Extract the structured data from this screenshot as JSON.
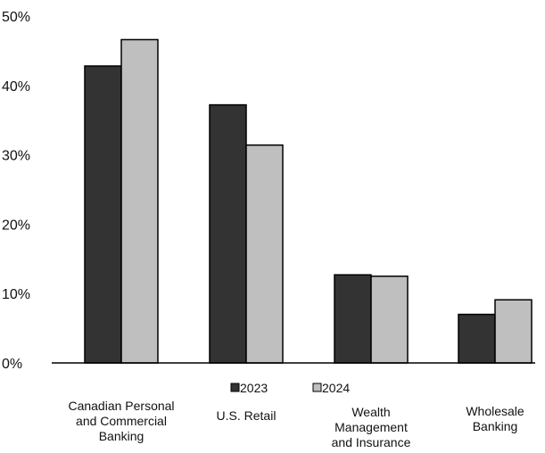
{
  "chart_data": {
    "type": "bar",
    "categories": [
      [
        "Canadian Personal",
        "and Commercial",
        "Banking"
      ],
      [
        "U.S. Retail"
      ],
      [
        "Wealth",
        "Management",
        "and Insurance"
      ],
      [
        "Wholesale",
        "Banking"
      ]
    ],
    "series": [
      {
        "name": "2023",
        "color": "#333333",
        "values": [
          42.8,
          37.2,
          12.7,
          7.0
        ]
      },
      {
        "name": "2024",
        "color": "#bfbfbf",
        "values": [
          46.6,
          31.4,
          12.5,
          9.1
        ]
      }
    ],
    "ylim": [
      0,
      50
    ],
    "yticks": [
      0,
      10,
      20,
      30,
      40,
      50
    ],
    "ytick_labels": [
      "0%",
      "10%",
      "20%",
      "30%",
      "40%",
      "50%"
    ],
    "grid": false,
    "legend": "bottom-center"
  }
}
